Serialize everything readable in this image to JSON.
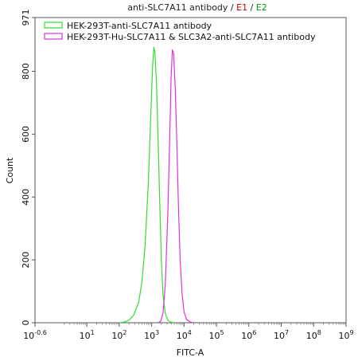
{
  "chart_data": {
    "type": "line",
    "title": {
      "main": "anti-SLC7A11 antibody",
      "sep1": " / ",
      "e1": "E1",
      "sep2": " / ",
      "e2": "E2",
      "main_color": "#222222",
      "e1_color": "#cc0000",
      "e2_color": "#009900"
    },
    "xlabel": "FITC-A",
    "ylabel": "Count",
    "xscale": "log",
    "xlim": [
      -0.6,
      9
    ],
    "ylim": [
      0,
      971
    ],
    "x_tick_labels": [
      {
        "base": "10",
        "exp": "-0.6"
      },
      {
        "base": "10",
        "exp": "1"
      },
      {
        "base": "10",
        "exp": "2"
      },
      {
        "base": "10",
        "exp": "3"
      },
      {
        "base": "10",
        "exp": "4"
      },
      {
        "base": "10",
        "exp": "5"
      },
      {
        "base": "10",
        "exp": "6"
      },
      {
        "base": "10",
        "exp": "7"
      },
      {
        "base": "10",
        "exp": "8"
      },
      {
        "base": "10",
        "exp": "9"
      }
    ],
    "y_ticks": [
      "0",
      "200",
      "400",
      "600",
      "800",
      "971"
    ],
    "legend_position": "top-left",
    "series": [
      {
        "name": "HEK-293T-anti-SLC7A11 antibody",
        "color": "#33dd33",
        "points": [
          [
            2.0,
            0
          ],
          [
            2.15,
            2
          ],
          [
            2.3,
            8
          ],
          [
            2.45,
            25
          ],
          [
            2.6,
            65
          ],
          [
            2.7,
            130
          ],
          [
            2.8,
            250
          ],
          [
            2.9,
            450
          ],
          [
            2.98,
            680
          ],
          [
            3.03,
            820
          ],
          [
            3.07,
            876
          ],
          [
            3.1,
            860
          ],
          [
            3.15,
            760
          ],
          [
            3.2,
            580
          ],
          [
            3.25,
            380
          ],
          [
            3.3,
            200
          ],
          [
            3.35,
            90
          ],
          [
            3.42,
            30
          ],
          [
            3.5,
            8
          ],
          [
            3.6,
            2
          ],
          [
            3.7,
            0
          ]
        ]
      },
      {
        "name": "HEK-293T-Hu-SLC7A11 & SLC3A2-anti-SLC7A11 antibody",
        "color": "#dd33dd",
        "points": [
          [
            3.2,
            0
          ],
          [
            3.28,
            5
          ],
          [
            3.35,
            30
          ],
          [
            3.42,
            120
          ],
          [
            3.5,
            350
          ],
          [
            3.56,
            600
          ],
          [
            3.6,
            780
          ],
          [
            3.64,
            868
          ],
          [
            3.68,
            855
          ],
          [
            3.73,
            740
          ],
          [
            3.78,
            560
          ],
          [
            3.83,
            360
          ],
          [
            3.88,
            200
          ],
          [
            3.94,
            90
          ],
          [
            4.0,
            35
          ],
          [
            4.08,
            10
          ],
          [
            4.2,
            2
          ],
          [
            4.3,
            0
          ]
        ]
      }
    ]
  }
}
